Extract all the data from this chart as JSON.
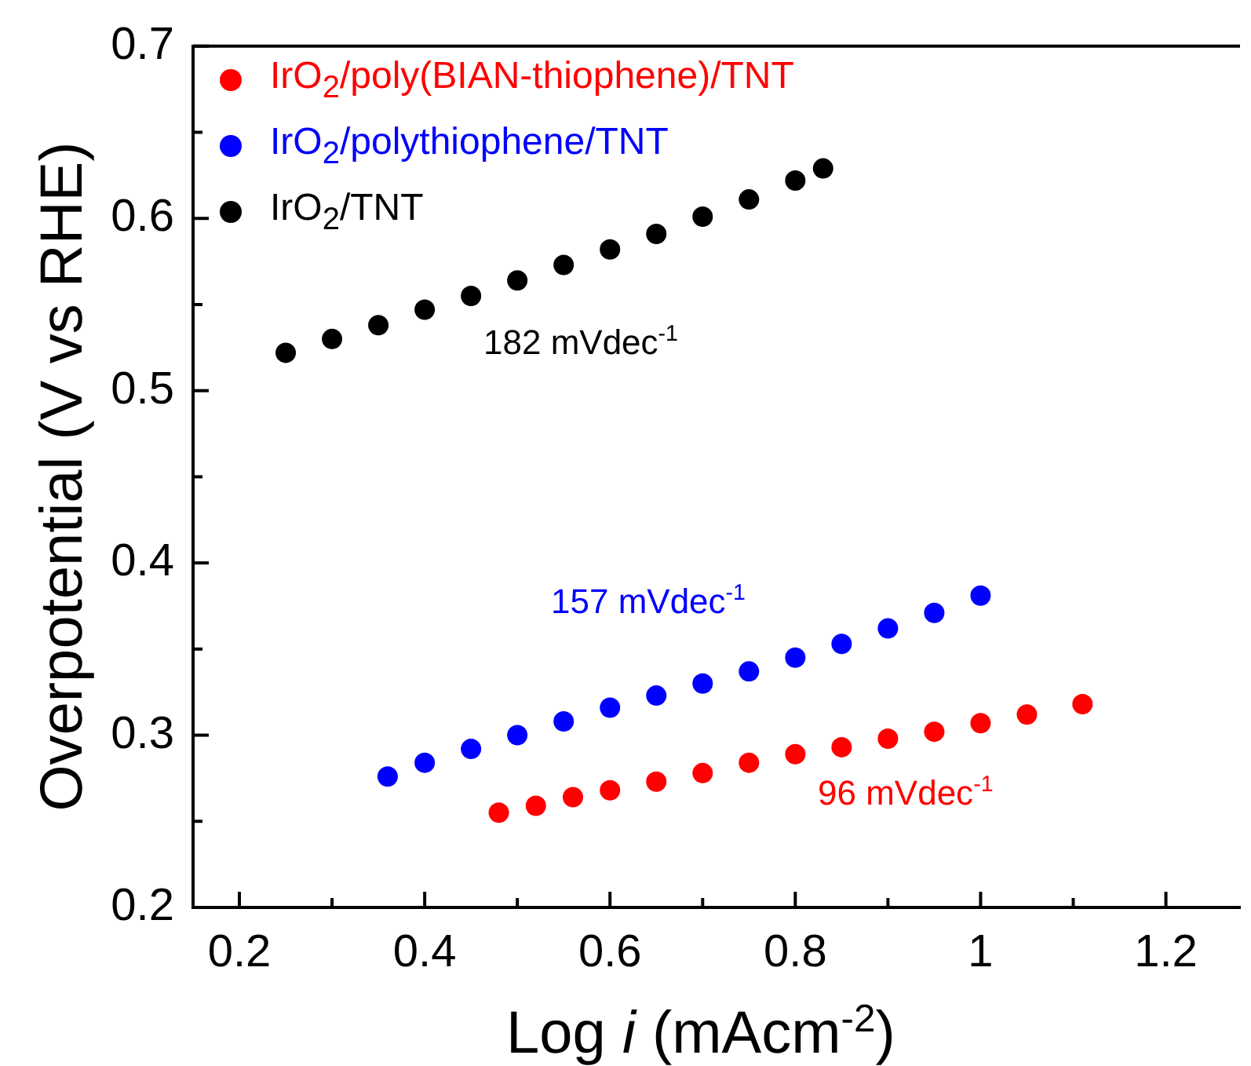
{
  "chart_data": {
    "type": "scatter",
    "xlabel": "Log i (mAcm$^{-2}$)",
    "ylabel": "Overpotential (V vs RHE)",
    "xlim": [
      0.15,
      1.28
    ],
    "ylim": [
      0.2,
      0.7
    ],
    "xticks": [
      0.2,
      {
        "value": 0.3,
        "label": null
      },
      0.4,
      {
        "value": 0.5,
        "label": null
      },
      0.6,
      {
        "value": 0.7,
        "label": null
      },
      0.8,
      {
        "value": 0.9,
        "label": null
      },
      1,
      {
        "value": 1.1,
        "label": null
      },
      1.2
    ],
    "yticks": [
      0.2,
      {
        "value": 0.25,
        "label": null
      },
      0.3,
      {
        "value": 0.35,
        "label": null
      },
      0.4,
      {
        "value": 0.45,
        "label": null
      },
      0.5,
      {
        "value": 0.55,
        "label": null
      },
      0.6,
      {
        "value": 0.65,
        "label": null
      },
      0.7
    ],
    "grid": false,
    "legend": "top left",
    "marker": "circle",
    "series": [
      {
        "name": "IrO$_{2}$/poly(BIAN-thiophene)/TNT",
        "color": "#ff0000",
        "x": [
          0.48,
          0.52,
          0.56,
          0.6,
          0.65,
          0.7,
          0.75,
          0.8,
          0.85,
          0.9,
          0.95,
          1.0,
          1.05,
          1.11
        ],
        "values": [
          0.255,
          0.259,
          0.264,
          0.268,
          0.273,
          0.278,
          0.284,
          0.289,
          0.293,
          0.298,
          0.302,
          0.307,
          0.312,
          0.318
        ]
      },
      {
        "name": "IrO$_{2}$/polythiophene/TNT",
        "color": "#0000ff",
        "x": [
          0.36,
          0.4,
          0.45,
          0.5,
          0.55,
          0.6,
          0.65,
          0.7,
          0.75,
          0.8,
          0.85,
          0.9,
          0.95,
          1.0
        ],
        "values": [
          0.276,
          0.284,
          0.292,
          0.3,
          0.308,
          0.316,
          0.323,
          0.33,
          0.337,
          0.345,
          0.353,
          0.362,
          0.371,
          0.381
        ]
      },
      {
        "name": "IrO$_{2}$/TNT",
        "color": "#000000",
        "x": [
          0.25,
          0.3,
          0.35,
          0.4,
          0.45,
          0.5,
          0.55,
          0.6,
          0.65,
          0.7,
          0.75,
          0.8,
          0.83
        ],
        "values": [
          0.522,
          0.53,
          0.538,
          0.547,
          0.555,
          0.564,
          0.573,
          0.582,
          0.591,
          0.601,
          0.611,
          0.622,
          0.629
        ]
      }
    ],
    "annotations": [
      "182 mVdec$^{-1}$",
      "157 mVdec$^{-1}$",
      "96 mVdec$^{-1}$"
    ]
  }
}
